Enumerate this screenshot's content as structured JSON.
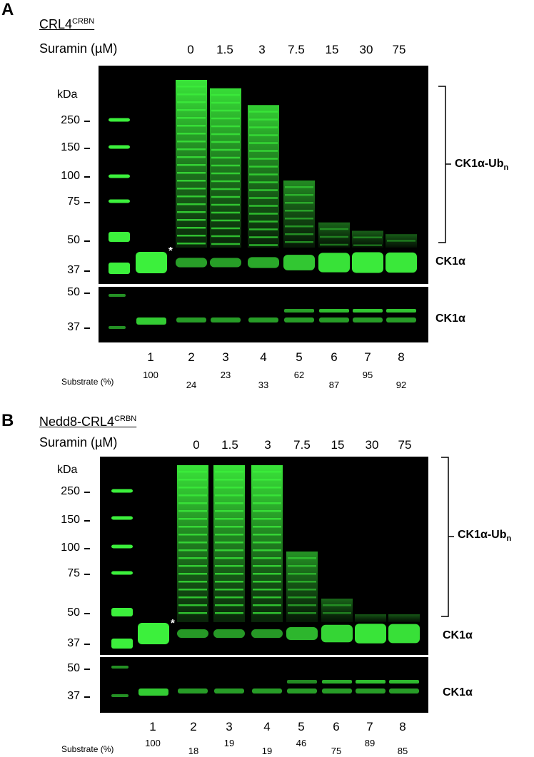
{
  "panels": [
    {
      "letter": "A",
      "construct_main": "CRL4",
      "construct_sup": "CRBN",
      "suramin_label": "Suramin (µM)",
      "concentrations": [
        "0",
        "1.5",
        "3",
        "7.5",
        "15",
        "30",
        "75"
      ],
      "kda_label": "kDa",
      "mw_upper": [
        "250",
        "150",
        "100",
        "75",
        "50",
        "37"
      ],
      "mw_lower": [
        "50",
        "37"
      ],
      "ub_label": "CK1α-Ub",
      "ub_sub": "n",
      "ck1a_label": "CK1α",
      "ck1a_label_lower": "CK1α",
      "asterisk": "*",
      "lanes": [
        "1",
        "2",
        "3",
        "4",
        "5",
        "6",
        "7",
        "8"
      ],
      "substrate_label": "Substrate (%)",
      "substrate_values": [
        "100",
        "24",
        "23",
        "33",
        "62",
        "87",
        "95",
        "92"
      ],
      "substrate_fraction": [
        1.0,
        0.24,
        0.23,
        0.33,
        0.62,
        0.87,
        0.95,
        0.92
      ],
      "smear_extent": [
        0,
        1.0,
        0.95,
        0.85,
        0.4,
        0.15,
        0.1,
        0.08
      ]
    },
    {
      "letter": "B",
      "construct_main": "Nedd8-CRL4",
      "construct_sup": "CRBN",
      "suramin_label": "Suramin (µM)",
      "concentrations": [
        "0",
        "1.5",
        "3",
        "7.5",
        "15",
        "30",
        "75"
      ],
      "kda_label": "kDa",
      "mw_upper": [
        "250",
        "150",
        "100",
        "75",
        "50",
        "37"
      ],
      "mw_lower": [
        "50",
        "37"
      ],
      "ub_label": "CK1α-Ub",
      "ub_sub": "n",
      "ck1a_label": "CK1α",
      "ck1a_label_lower": "CK1α",
      "asterisk": "*",
      "lanes": [
        "1",
        "2",
        "3",
        "4",
        "5",
        "6",
        "7",
        "8"
      ],
      "substrate_label": "Substrate (%)",
      "substrate_values": [
        "100",
        "18",
        "19",
        "19",
        "46",
        "75",
        "89",
        "85"
      ],
      "substrate_fraction": [
        1.0,
        0.18,
        0.19,
        0.19,
        0.46,
        0.75,
        0.89,
        0.85
      ],
      "smear_extent": [
        0,
        1.0,
        1.0,
        1.0,
        0.45,
        0.15,
        0.05,
        0.05
      ]
    }
  ],
  "colors": {
    "band": "#3cf03c",
    "background": "#000000"
  }
}
